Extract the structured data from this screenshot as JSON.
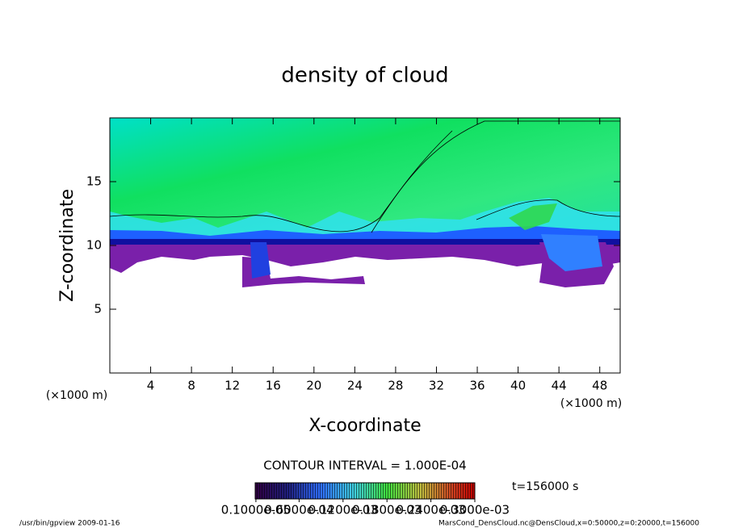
{
  "chart_data": {
    "type": "contour",
    "title": "density of cloud",
    "xlabel": "X-coordinate",
    "ylabel": "Z-coordinate",
    "xunit": "(×1000 m)",
    "yunit": "(×1000 m)",
    "xlim": [
      0,
      50
    ],
    "xticks": [
      4,
      8,
      12,
      16,
      20,
      24,
      28,
      32,
      36,
      40,
      44,
      48
    ],
    "ylim": [
      0,
      20
    ],
    "yticks": [
      5,
      10,
      15
    ],
    "contour_interval": "CONTOUR INTERVAL = 1.000E-04",
    "time_label": "t=156000 s",
    "colorbar": {
      "lim": [
        0,
        0.0003
      ],
      "ticks": [
        {
          "value": 1e-06,
          "label": "0.1000e-05"
        },
        {
          "value": 6e-05,
          "label": "0.6000e-04"
        },
        {
          "value": 0.00012,
          "label": "0.1200e-03"
        },
        {
          "value": 0.00018,
          "label": "0.1800e-03"
        },
        {
          "value": 0.00024,
          "label": "0.2400e-03"
        },
        {
          "value": 0.0003,
          "label": "0.3000e-03"
        }
      ]
    },
    "footer_left": "/usr/bin/gpview   2009-01-16",
    "footer_right": "MarsCond_DensCloud.nc@DensCloud,x=0:50000,z=0:20000,t=156000"
  }
}
